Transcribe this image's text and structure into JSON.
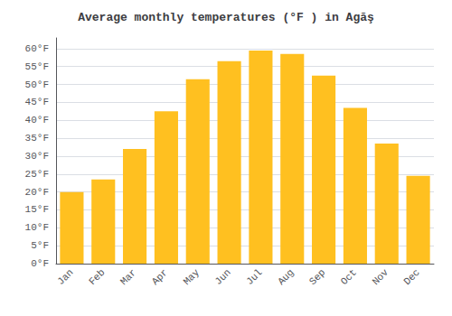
{
  "chart_data": {
    "type": "bar",
    "title": "Average monthly temperatures (°F ) in Agăş",
    "categories": [
      "Jan",
      "Feb",
      "Mar",
      "Apr",
      "May",
      "Jun",
      "Jul",
      "Aug",
      "Sep",
      "Oct",
      "Nov",
      "Dec"
    ],
    "values": [
      20.0,
      23.5,
      32.0,
      42.5,
      51.5,
      56.5,
      59.5,
      58.5,
      52.5,
      43.5,
      33.5,
      24.5
    ],
    "color": "#FFC020",
    "ylim": [
      0,
      63
    ],
    "yticks": [
      {
        "value": 0,
        "label": "0°F"
      },
      {
        "value": 5,
        "label": "5°F"
      },
      {
        "value": 10,
        "label": "10°F"
      },
      {
        "value": 15,
        "label": "15°F"
      },
      {
        "value": 20,
        "label": "20°F"
      },
      {
        "value": 25,
        "label": "25°F"
      },
      {
        "value": 30,
        "label": "30°F"
      },
      {
        "value": 35,
        "label": "35°F"
      },
      {
        "value": 40,
        "label": "40°F"
      },
      {
        "value": 45,
        "label": "45°F"
      },
      {
        "value": 50,
        "label": "50°F"
      },
      {
        "value": 55,
        "label": "55°F"
      },
      {
        "value": 60,
        "label": "60°F"
      }
    ],
    "grid": true
  }
}
